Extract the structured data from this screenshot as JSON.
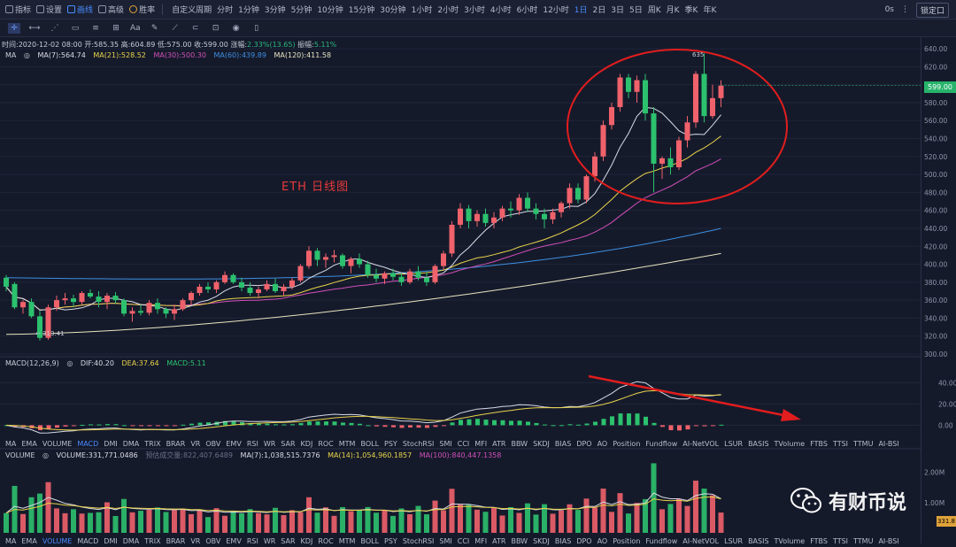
{
  "topbar": {
    "items": [
      "指标",
      "设置",
      "画线",
      "高级",
      "胜率"
    ],
    "custom": "自定义周期",
    "timeframes": [
      "分时",
      "1分钟",
      "3分钟",
      "5分钟",
      "10分钟",
      "15分钟",
      "30分钟",
      "1小时",
      "2小时",
      "3小时",
      "4小时",
      "6小时",
      "12小时",
      "1日",
      "2日",
      "3日",
      "5日",
      "周K",
      "月K",
      "季K",
      "年K"
    ],
    "active_timeframe": "1日",
    "right": [
      "0s"
    ],
    "lock_btn": "锁定口"
  },
  "toolbar": {
    "text_tool": "Aa"
  },
  "info": {
    "time_label": "时间:",
    "time": "2020-12-02 08:00",
    "open_label": "开:",
    "open": "585.35",
    "high_label": "高:",
    "high": "604.89",
    "low_label": "低:",
    "low": "575.00",
    "close_label": "收:",
    "close": "599.00",
    "change_label": "涨幅:",
    "change": "2.33%(13.65)",
    "amp_label": "振幅:",
    "amp": "5.11%"
  },
  "ma": {
    "name": "MA",
    "ma7": "MA(7):564.74",
    "ma21": "MA(21):528.52",
    "ma30": "MA(30):500.30",
    "ma60": "MA(60):439.89",
    "ma120": "MA(120):411.58"
  },
  "macd": {
    "name": "MACD(12,26,9)",
    "dif": "DIF:40.20",
    "dea": "DEA:37.64",
    "macd": "MACD:5.11"
  },
  "volume": {
    "name": "VOLUME",
    "vol": "VOLUME:331,771.0486",
    "est": "预估成交量:822,407.6489",
    "ma7": "MA(7):1,038,515.7376",
    "ma14": "MA(14):1,054,960.1857",
    "ma100": "MA(100):840,447.1358"
  },
  "indicator_tabs": [
    "MA",
    "EMA",
    "VOLUME",
    "MACD",
    "DMI",
    "DMA",
    "TRIX",
    "BRAR",
    "VR",
    "OBV",
    "EMV",
    "RSI",
    "WR",
    "SAR",
    "KDJ",
    "ROC",
    "MTM",
    "BOLL",
    "PSY",
    "StochRSI",
    "SMI",
    "CCI",
    "MFI",
    "ATR",
    "BBW",
    "SKDJ",
    "BIAS",
    "DPO",
    "AO",
    "Position",
    "Fundflow",
    "AI-NetVOL",
    "LSUR",
    "BASIS",
    "TVolume",
    "FTBS",
    "TTSI",
    "TTMU",
    "AI-BSI"
  ],
  "price_axis": [
    "640.00",
    "620.00",
    "600.00",
    "580.00",
    "560.00",
    "540.00",
    "520.00",
    "500.00",
    "480.00",
    "460.00",
    "440.00",
    "420.00",
    "400.00",
    "380.00",
    "360.00",
    "340.00",
    "320.00",
    "300.00"
  ],
  "macd_axis": [
    "40.00",
    "20.00",
    "0.00"
  ],
  "vol_axis": [
    "2.00M",
    "1.00M"
  ],
  "current_price": "599.00",
  "current_vol": "331.8",
  "high_mark": "635",
  "low_mark": "313.41",
  "annotation": "ETH  日线图",
  "watermark": "有财币说",
  "colors": {
    "up": "#f0626b",
    "down": "#2cc16e",
    "ma7": "#d8dbe6",
    "ma21": "#e8d34a",
    "ma30": "#d14fb8",
    "ma60": "#3d8fe0",
    "ma120": "#e8e4c0",
    "bg": "#151a2b"
  },
  "chart_data": {
    "type": "candlestick",
    "ohlc": [
      [
        385,
        388,
        370,
        375
      ],
      [
        378,
        380,
        350,
        352
      ],
      [
        352,
        360,
        345,
        358
      ],
      [
        358,
        362,
        340,
        342
      ],
      [
        342,
        348,
        315,
        318
      ],
      [
        318,
        355,
        316,
        352
      ],
      [
        352,
        365,
        348,
        360
      ],
      [
        360,
        368,
        355,
        362
      ],
      [
        362,
        366,
        352,
        358
      ],
      [
        358,
        370,
        355,
        368
      ],
      [
        368,
        372,
        362,
        364
      ],
      [
        364,
        370,
        352,
        358
      ],
      [
        358,
        368,
        350,
        365
      ],
      [
        365,
        369,
        356,
        360
      ],
      [
        360,
        362,
        342,
        345
      ],
      [
        345,
        352,
        336,
        348
      ],
      [
        348,
        355,
        343,
        346
      ],
      [
        346,
        360,
        343,
        357
      ],
      [
        357,
        362,
        345,
        350
      ],
      [
        350,
        352,
        340,
        345
      ],
      [
        345,
        355,
        338,
        350
      ],
      [
        350,
        362,
        348,
        360
      ],
      [
        360,
        370,
        355,
        368
      ],
      [
        368,
        378,
        365,
        375
      ],
      [
        375,
        380,
        368,
        372
      ],
      [
        372,
        382,
        368,
        380
      ],
      [
        380,
        392,
        378,
        388
      ],
      [
        388,
        390,
        378,
        380
      ],
      [
        380,
        385,
        370,
        374
      ],
      [
        374,
        380,
        365,
        368
      ],
      [
        368,
        375,
        362,
        372
      ],
      [
        372,
        382,
        370,
        378
      ],
      [
        378,
        384,
        368,
        370
      ],
      [
        370,
        378,
        365,
        375
      ],
      [
        375,
        385,
        372,
        382
      ],
      [
        382,
        400,
        380,
        398
      ],
      [
        398,
        420,
        395,
        415
      ],
      [
        415,
        418,
        398,
        405
      ],
      [
        405,
        412,
        396,
        408
      ],
      [
        408,
        416,
        402,
        410
      ],
      [
        410,
        412,
        395,
        398
      ],
      [
        398,
        408,
        390,
        406
      ],
      [
        406,
        412,
        396,
        400
      ],
      [
        400,
        404,
        385,
        388
      ],
      [
        388,
        395,
        380,
        384
      ],
      [
        384,
        392,
        378,
        390
      ],
      [
        390,
        395,
        382,
        386
      ],
      [
        386,
        390,
        376,
        380
      ],
      [
        380,
        395,
        378,
        392
      ],
      [
        392,
        398,
        382,
        385
      ],
      [
        385,
        392,
        376,
        380
      ],
      [
        380,
        400,
        378,
        398
      ],
      [
        398,
        415,
        394,
        412
      ],
      [
        412,
        448,
        408,
        444
      ],
      [
        444,
        468,
        440,
        462
      ],
      [
        462,
        466,
        440,
        448
      ],
      [
        448,
        460,
        442,
        456
      ],
      [
        456,
        462,
        442,
        446
      ],
      [
        446,
        458,
        440,
        452
      ],
      [
        452,
        465,
        448,
        462
      ],
      [
        462,
        470,
        452,
        460
      ],
      [
        460,
        478,
        455,
        474
      ],
      [
        474,
        480,
        458,
        462
      ],
      [
        462,
        468,
        450,
        456
      ],
      [
        456,
        462,
        440,
        450
      ],
      [
        450,
        462,
        445,
        458
      ],
      [
        458,
        470,
        452,
        468
      ],
      [
        468,
        490,
        462,
        485
      ],
      [
        485,
        490,
        468,
        472
      ],
      [
        472,
        500,
        468,
        498
      ],
      [
        498,
        525,
        492,
        520
      ],
      [
        520,
        560,
        515,
        555
      ],
      [
        555,
        580,
        550,
        575
      ],
      [
        575,
        612,
        570,
        608
      ],
      [
        608,
        612,
        585,
        592
      ],
      [
        592,
        610,
        580,
        605
      ],
      [
        605,
        612,
        560,
        568
      ],
      [
        568,
        575,
        480,
        512
      ],
      [
        512,
        520,
        495,
        518
      ],
      [
        518,
        530,
        500,
        508
      ],
      [
        508,
        542,
        505,
        538
      ],
      [
        538,
        565,
        530,
        558
      ],
      [
        558,
        615,
        552,
        612
      ],
      [
        612,
        635,
        558,
        565
      ],
      [
        565,
        600,
        562,
        585
      ],
      [
        585,
        605,
        575,
        599
      ]
    ],
    "price_range": [
      300,
      645
    ],
    "ma_series": [
      "MA(7)",
      "MA(21)",
      "MA(30)",
      "MA(60)",
      "MA(120)"
    ],
    "macd_range": [
      -8,
      52
    ],
    "vol_range": [
      0,
      2.4
    ]
  }
}
